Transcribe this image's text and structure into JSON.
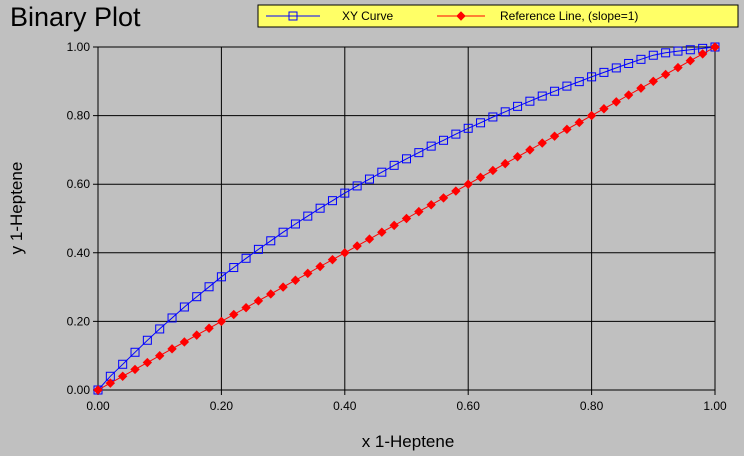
{
  "chart_data": {
    "type": "line",
    "title": "Binary Plot",
    "xlabel": "x 1-Heptene",
    "ylabel": "y 1-Heptene",
    "xlim": [
      0,
      1
    ],
    "ylim": [
      0,
      1
    ],
    "xticks": [
      "0.00",
      "0.20",
      "0.40",
      "0.60",
      "0.80",
      "1.00"
    ],
    "yticks": [
      "0.00",
      "0.20",
      "0.40",
      "0.60",
      "0.80",
      "1.00"
    ],
    "grid": true,
    "legend_position": "top",
    "series": [
      {
        "name": "XY Curve",
        "color": "#0000ff",
        "marker": "open-square",
        "x": [
          0.0,
          0.02,
          0.04,
          0.06,
          0.08,
          0.1,
          0.12,
          0.14,
          0.16,
          0.18,
          0.2,
          0.22,
          0.24,
          0.26,
          0.28,
          0.3,
          0.32,
          0.34,
          0.36,
          0.38,
          0.4,
          0.42,
          0.44,
          0.46,
          0.48,
          0.5,
          0.52,
          0.54,
          0.56,
          0.58,
          0.6,
          0.62,
          0.64,
          0.66,
          0.68,
          0.7,
          0.72,
          0.74,
          0.76,
          0.78,
          0.8,
          0.82,
          0.84,
          0.86,
          0.88,
          0.9,
          0.92,
          0.94,
          0.96,
          0.98,
          1.0
        ],
        "y": [
          0.0,
          0.04,
          0.075,
          0.11,
          0.145,
          0.178,
          0.21,
          0.242,
          0.272,
          0.301,
          0.33,
          0.357,
          0.384,
          0.41,
          0.435,
          0.46,
          0.484,
          0.507,
          0.53,
          0.552,
          0.574,
          0.595,
          0.615,
          0.635,
          0.655,
          0.674,
          0.692,
          0.711,
          0.728,
          0.746,
          0.763,
          0.779,
          0.796,
          0.811,
          0.827,
          0.842,
          0.857,
          0.871,
          0.886,
          0.899,
          0.913,
          0.926,
          0.939,
          0.952,
          0.964,
          0.976,
          0.983,
          0.988,
          0.992,
          0.996,
          1.0
        ]
      },
      {
        "name": "Reference Line, (slope=1)",
        "color": "#ff0000",
        "marker": "filled-diamond",
        "x": [
          0.0,
          0.02,
          0.04,
          0.06,
          0.08,
          0.1,
          0.12,
          0.14,
          0.16,
          0.18,
          0.2,
          0.22,
          0.24,
          0.26,
          0.28,
          0.3,
          0.32,
          0.34,
          0.36,
          0.38,
          0.4,
          0.42,
          0.44,
          0.46,
          0.48,
          0.5,
          0.52,
          0.54,
          0.56,
          0.58,
          0.6,
          0.62,
          0.64,
          0.66,
          0.68,
          0.7,
          0.72,
          0.74,
          0.76,
          0.78,
          0.8,
          0.82,
          0.84,
          0.86,
          0.88,
          0.9,
          0.92,
          0.94,
          0.96,
          0.98,
          1.0
        ],
        "y": [
          0.0,
          0.02,
          0.04,
          0.06,
          0.08,
          0.1,
          0.12,
          0.14,
          0.16,
          0.18,
          0.2,
          0.22,
          0.24,
          0.26,
          0.28,
          0.3,
          0.32,
          0.34,
          0.36,
          0.38,
          0.4,
          0.42,
          0.44,
          0.46,
          0.48,
          0.5,
          0.52,
          0.54,
          0.56,
          0.58,
          0.6,
          0.62,
          0.64,
          0.66,
          0.68,
          0.7,
          0.72,
          0.74,
          0.76,
          0.78,
          0.8,
          0.82,
          0.84,
          0.86,
          0.88,
          0.9,
          0.92,
          0.94,
          0.96,
          0.98,
          1.0
        ]
      }
    ]
  },
  "colors": {
    "background": "#c0c0c0",
    "plot_background": "#c0c0c0",
    "grid": "#000000",
    "legend_background": "#ffff66"
  }
}
